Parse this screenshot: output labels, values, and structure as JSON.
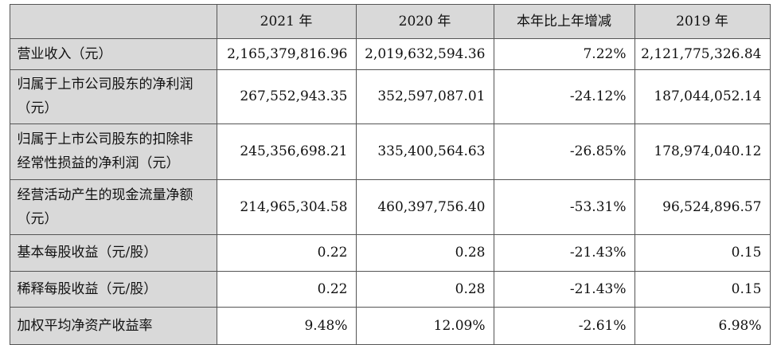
{
  "table": {
    "header": [
      "2021 年",
      "2020 年",
      "本年比上年增减",
      "2019 年"
    ],
    "rows": [
      {
        "label": [
          "营业收入（元）"
        ],
        "values": [
          "2,165,379,816.96",
          "2,019,632,594.36",
          "7.22%",
          "2,121,775,326.84"
        ]
      },
      {
        "label": [
          "归属于上市公司股东的净利润",
          "（元）"
        ],
        "values": [
          "267,552,943.35",
          "352,597,087.01",
          "-24.12%",
          "187,044,052.14"
        ]
      },
      {
        "label": [
          "归属于上市公司股东的扣除非",
          "经常性损益的净利润（元）"
        ],
        "values": [
          "245,356,698.21",
          "335,400,564.63",
          "-26.85%",
          "178,974,040.12"
        ]
      },
      {
        "label": [
          "经营活动产生的现金流量净额",
          "（元）"
        ],
        "values": [
          "214,965,304.58",
          "460,397,756.40",
          "-53.31%",
          "96,524,896.57"
        ]
      },
      {
        "label": [
          "基本每股收益（元/股）"
        ],
        "values": [
          "0.22",
          "0.28",
          "-21.43%",
          "0.15"
        ]
      },
      {
        "label": [
          "稀释每股收益（元/股）"
        ],
        "values": [
          "0.22",
          "0.28",
          "-21.43%",
          "0.15"
        ]
      },
      {
        "label": [
          "加权平均净资产收益率"
        ],
        "values": [
          "9.48%",
          "12.09%",
          "-2.61%",
          "6.98%"
        ]
      }
    ]
  }
}
